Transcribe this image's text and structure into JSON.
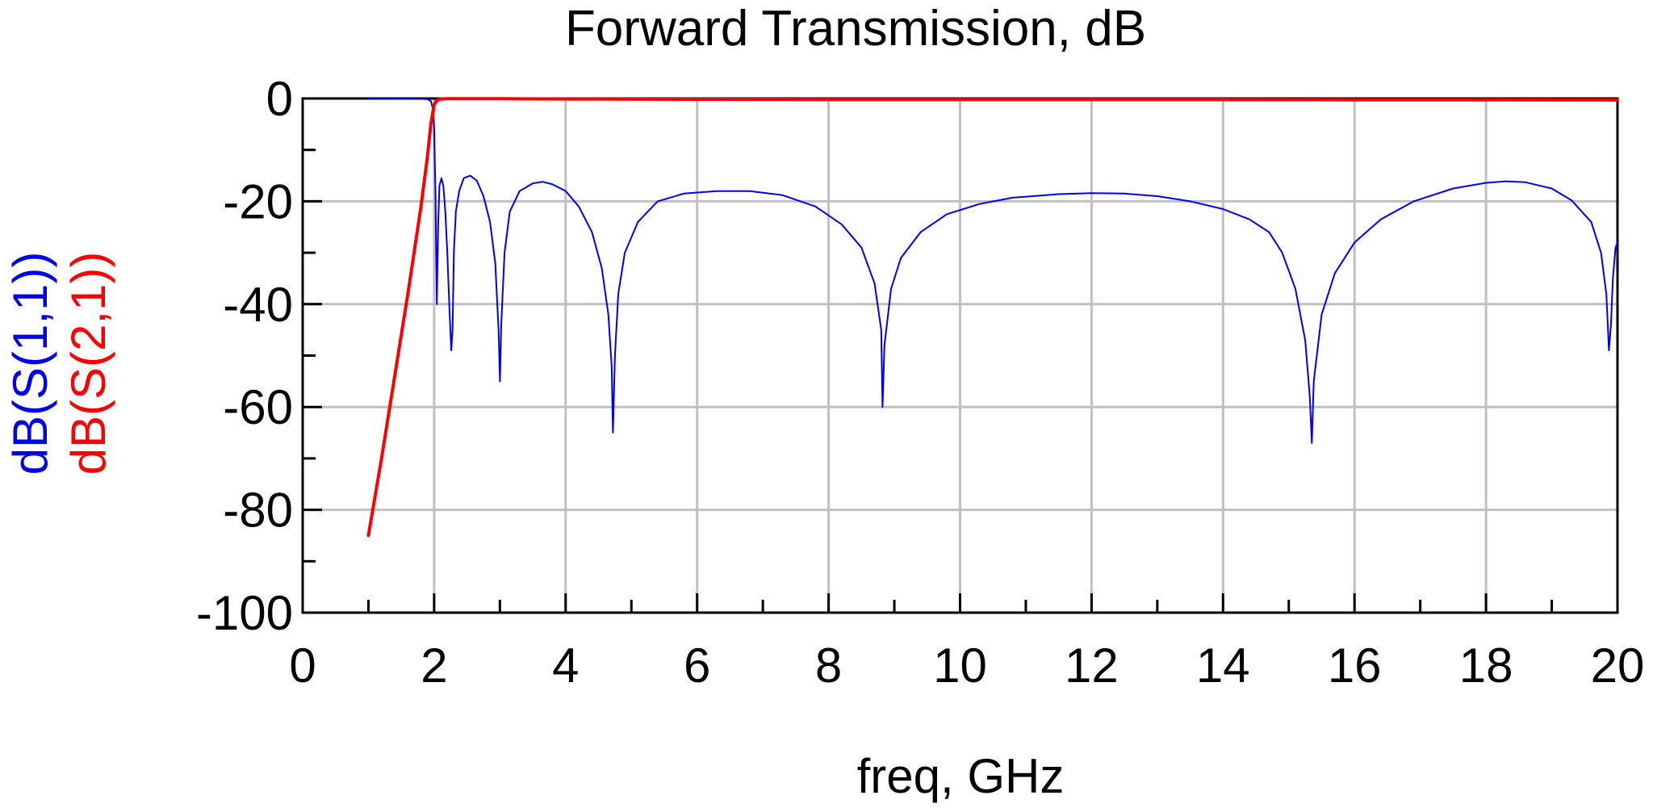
{
  "chart_data": {
    "type": "line",
    "title": "Forward Transmission, dB",
    "xlabel": "freq, GHz",
    "ylabels": [
      "dB(S(1,1))",
      "dB(S(2,1))"
    ],
    "xlim": [
      0,
      20
    ],
    "ylim": [
      -100,
      0
    ],
    "xticks": [
      0,
      2,
      4,
      6,
      8,
      10,
      12,
      14,
      16,
      18,
      20
    ],
    "yticks": [
      0,
      -20,
      -40,
      -60,
      -80,
      -100
    ],
    "grid": true,
    "series": [
      {
        "name": "dB(S(1,1))",
        "color": "#0000ee",
        "x": [
          1.0,
          1.5,
          1.8,
          1.9,
          1.95,
          1.98,
          2.0,
          2.02,
          2.04,
          2.06,
          2.08,
          2.11,
          2.14,
          2.17,
          2.2,
          2.23,
          2.26,
          2.28,
          2.3,
          2.33,
          2.38,
          2.45,
          2.55,
          2.65,
          2.75,
          2.85,
          2.93,
          2.98,
          3.0,
          3.02,
          3.07,
          3.15,
          3.3,
          3.5,
          3.65,
          3.8,
          4.0,
          4.2,
          4.4,
          4.55,
          4.65,
          4.7,
          4.72,
          4.75,
          4.8,
          4.9,
          5.1,
          5.4,
          5.8,
          6.3,
          6.8,
          7.3,
          7.8,
          8.2,
          8.5,
          8.7,
          8.8,
          8.82,
          8.85,
          8.95,
          9.1,
          9.4,
          9.8,
          10.3,
          10.8,
          11.5,
          12.0,
          12.5,
          13.0,
          13.5,
          14.0,
          14.4,
          14.7,
          14.9,
          15.1,
          15.25,
          15.32,
          15.35,
          15.38,
          15.5,
          15.7,
          16.0,
          16.4,
          16.9,
          17.5,
          18.0,
          18.3,
          18.6,
          19.0,
          19.3,
          19.6,
          19.75,
          19.83,
          19.87,
          19.9,
          19.93,
          19.97,
          20.0
        ],
        "y": [
          -0.01,
          -0.02,
          -0.05,
          -0.15,
          -0.5,
          -2,
          -6,
          -18,
          -40,
          -25,
          -17,
          -15.5,
          -17,
          -22,
          -30,
          -40,
          -49,
          -45,
          -30,
          -22,
          -18,
          -15.5,
          -15,
          -16,
          -19,
          -24,
          -32,
          -45,
          -55,
          -44,
          -30,
          -22,
          -18,
          -16.5,
          -16.2,
          -16.7,
          -18,
          -21,
          -26,
          -33,
          -42,
          -52,
          -65,
          -50,
          -38,
          -30,
          -24,
          -20,
          -18.5,
          -18,
          -18,
          -18.8,
          -21,
          -24.5,
          -29,
          -36,
          -45,
          -60,
          -48,
          -37,
          -31,
          -26,
          -22.5,
          -20.5,
          -19.3,
          -18.6,
          -18.4,
          -18.5,
          -19,
          -20,
          -21.5,
          -23.5,
          -26,
          -30,
          -37,
          -47,
          -58,
          -67,
          -55,
          -42,
          -34,
          -28,
          -23.5,
          -20,
          -17.5,
          -16.4,
          -16.1,
          -16.3,
          -17.5,
          -19.8,
          -24,
          -30,
          -38,
          -49,
          -44,
          -35,
          -29,
          -28
        ]
      },
      {
        "name": "dB(S(2,1))",
        "color": "#ff0000",
        "x": [
          1.0,
          1.2,
          1.4,
          1.6,
          1.8,
          1.9,
          1.95,
          2.0,
          2.05,
          2.1,
          2.2,
          2.5,
          3.0,
          4.0,
          6.0,
          8.0,
          10.0,
          12.0,
          14.0,
          16.0,
          18.0,
          20.0
        ],
        "y": [
          -85,
          -70,
          -54,
          -38,
          -21,
          -11,
          -5,
          -1.2,
          -0.3,
          -0.1,
          -0.05,
          -0.05,
          -0.05,
          -0.1,
          -0.15,
          -0.2,
          -0.2,
          -0.2,
          -0.2,
          -0.25,
          -0.25,
          -0.3
        ]
      }
    ]
  }
}
